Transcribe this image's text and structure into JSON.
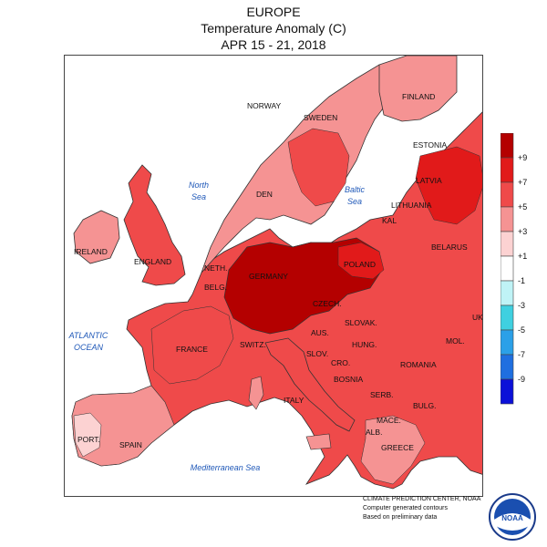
{
  "header": {
    "region": "EUROPE",
    "quantity": "Temperature Anomaly (C)",
    "period": "APR 15 - 21, 2018"
  },
  "legend": {
    "breaks": [
      {
        "label": "+9",
        "color": "#b40000"
      },
      {
        "label": "+7",
        "color": "#e11a1a"
      },
      {
        "label": "+5",
        "color": "#ef4a4a"
      },
      {
        "label": "+3",
        "color": "#f59393"
      },
      {
        "label": "+1",
        "color": "#fcd2d2"
      },
      {
        "label": "-1",
        "color": "#ffffff"
      },
      {
        "label": "-3",
        "color": "#bff3f6"
      },
      {
        "label": "-5",
        "color": "#3fd0e0"
      },
      {
        "label": "-7",
        "color": "#2ba0e8"
      },
      {
        "label": "-9",
        "color": "#1f6fe0"
      },
      {
        "label": "",
        "color": "#0b10d8"
      }
    ]
  },
  "map": {
    "colors": {
      "sea": "#ffffff",
      "anomaly_1_3": "#fcd2d2",
      "anomaly_3_5": "#f59393",
      "anomaly_5_7": "#ef4a4a",
      "anomaly_7_9": "#e11a1a",
      "anomaly_9_plus": "#b40000"
    },
    "country_labels": [
      {
        "text": "NORWAY"
      },
      {
        "text": "SWEDEN"
      },
      {
        "text": "FINLAND"
      },
      {
        "text": "ESTONIA"
      },
      {
        "text": "LATVIA"
      },
      {
        "text": "LITHUANIA"
      },
      {
        "text": "KAL"
      },
      {
        "text": "BELARUS"
      },
      {
        "text": "DEN"
      },
      {
        "text": "IRELAND"
      },
      {
        "text": "ENGLAND"
      },
      {
        "text": "NETH."
      },
      {
        "text": "BELG."
      },
      {
        "text": "GERMANY"
      },
      {
        "text": "POLAND"
      },
      {
        "text": "CZECH."
      },
      {
        "text": "SLOVAK."
      },
      {
        "text": "UK"
      },
      {
        "text": "AUS."
      },
      {
        "text": "HUNG."
      },
      {
        "text": "MOL."
      },
      {
        "text": "FRANCE"
      },
      {
        "text": "SWITZ."
      },
      {
        "text": "SLOV."
      },
      {
        "text": "CRO."
      },
      {
        "text": "ROMANIA"
      },
      {
        "text": "BOSNIA"
      },
      {
        "text": "SERB."
      },
      {
        "text": "BULG."
      },
      {
        "text": "ITALY"
      },
      {
        "text": "MACE."
      },
      {
        "text": "ALB."
      },
      {
        "text": "GREECE"
      },
      {
        "text": "PORT."
      },
      {
        "text": "SPAIN"
      }
    ],
    "sea_labels": [
      {
        "lines": [
          "North",
          "Sea"
        ]
      },
      {
        "lines": [
          "Baltic",
          "Sea"
        ]
      },
      {
        "lines": [
          "ATLANTIC",
          "OCEAN"
        ]
      },
      {
        "lines": [
          "Mediterranean Sea"
        ]
      }
    ]
  },
  "credits": {
    "line1": "CLIMATE PREDICTION CENTER, NOAA",
    "line2": "Computer generated contours",
    "line3": "Based on preliminary data",
    "logo_text": "NOAA"
  }
}
